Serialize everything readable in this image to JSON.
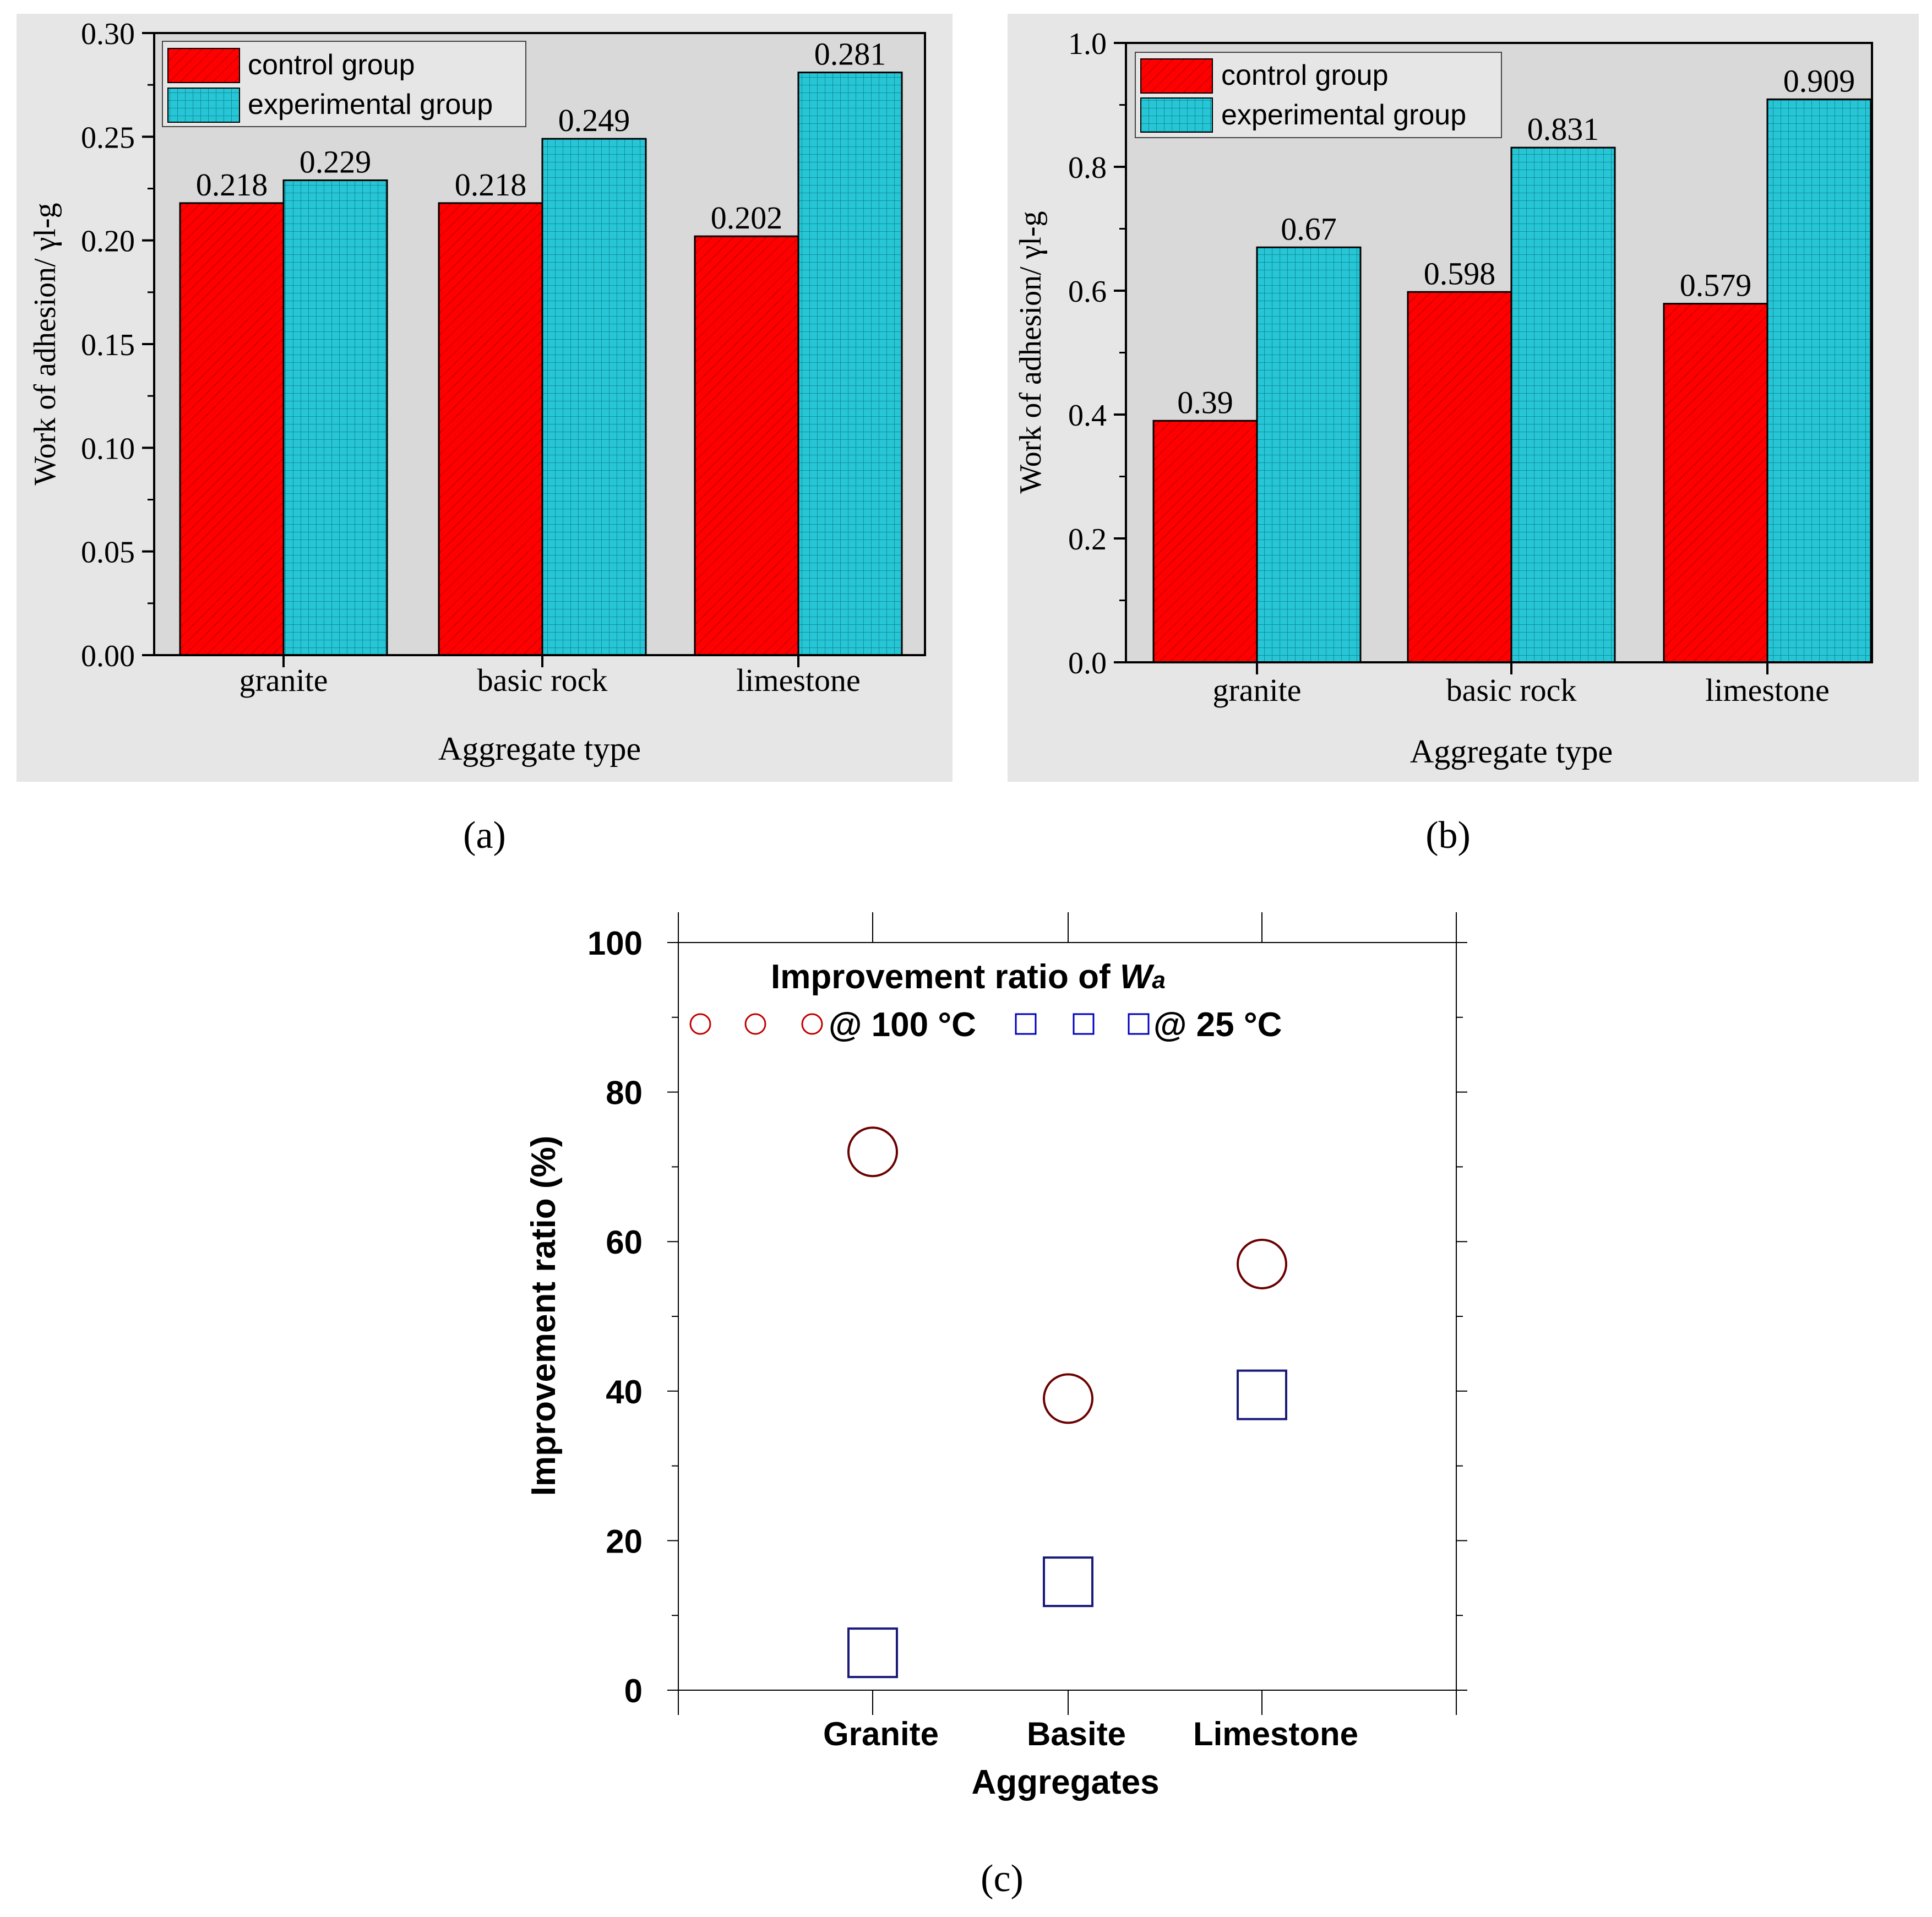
{
  "colors": {
    "panel_bg": "#e6e6e6",
    "control": "#ff0000",
    "experimental": "#26c6d6",
    "circle": "#6b0000",
    "square": "#1a1a7a",
    "legend_circle": "#c00000",
    "legend_square": "#0000c0"
  },
  "chart_data": [
    {
      "panel": "a",
      "type": "bar",
      "caption": "(a)",
      "title": "",
      "xlabel": "Aggregate type",
      "ylabel": "Work of adhesion/ γl-g",
      "ylim": [
        0,
        0.3
      ],
      "yticks": [
        "0.00",
        "0.05",
        "0.10",
        "0.15",
        "0.20",
        "0.25",
        "0.30"
      ],
      "categories": [
        "granite",
        "basic rock",
        "limestone"
      ],
      "legend": {
        "position": "top-left"
      },
      "series": [
        {
          "name": "control group",
          "values": [
            0.218,
            0.218,
            0.202
          ],
          "labels": [
            "0.218",
            "0.218",
            "0.202"
          ]
        },
        {
          "name": "experimental group",
          "values": [
            0.229,
            0.249,
            0.281
          ],
          "labels": [
            "0.229",
            "0.249",
            "0.281"
          ]
        }
      ]
    },
    {
      "panel": "b",
      "type": "bar",
      "caption": "(b)",
      "title": "",
      "xlabel": "Aggregate type",
      "ylabel": "Work of adhesion/ γl-g",
      "ylim": [
        0,
        1.0
      ],
      "yticks": [
        "0.0",
        "0.2",
        "0.4",
        "0.6",
        "0.8",
        "1.0"
      ],
      "categories": [
        "granite",
        "basic rock",
        "limestone"
      ],
      "legend": {
        "position": "top-left"
      },
      "series": [
        {
          "name": "control group",
          "values": [
            0.39,
            0.598,
            0.579
          ],
          "labels": [
            "0.39",
            "0.598",
            "0.579"
          ]
        },
        {
          "name": "experimental group",
          "values": [
            0.67,
            0.831,
            0.909
          ],
          "labels": [
            "0.67",
            "0.831",
            "0.909"
          ]
        }
      ]
    },
    {
      "panel": "c",
      "type": "scatter",
      "caption": "(c)",
      "title_prefix": "Improvement ratio of ",
      "title_var": "W",
      "title_sub": "a",
      "xlabel": "Aggregates",
      "ylabel": "Improvement ratio (%)",
      "ylim": [
        0,
        100
      ],
      "yticks": [
        "0",
        "20",
        "40",
        "60",
        "80",
        "100"
      ],
      "categories": [
        "Granite",
        "Basite",
        "Limestone"
      ],
      "legend": {
        "position": "top"
      },
      "series": [
        {
          "name": "@ 100 °C",
          "marker": "circle",
          "values": [
            72,
            39,
            57
          ]
        },
        {
          "name": "@ 25 °C",
          "marker": "square",
          "values": [
            5,
            14.5,
            39.5
          ]
        }
      ]
    }
  ]
}
